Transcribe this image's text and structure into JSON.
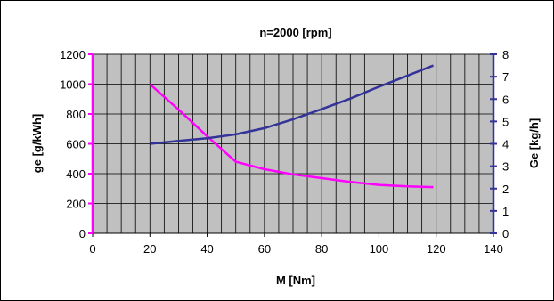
{
  "chart_data": {
    "type": "line",
    "title": "n=2000 [rpm]",
    "xlabel": "M [Nm]",
    "ylabel_left": "ge [g/kWh]",
    "ylabel_right": "Ge [kg/h]",
    "xlim": [
      0,
      140
    ],
    "ylim_left": [
      0,
      1200
    ],
    "ylim_right": [
      0,
      8
    ],
    "x_ticks": [
      "0",
      "20",
      "40",
      "60",
      "80",
      "100",
      "120",
      "140"
    ],
    "y_left_ticks": [
      "0",
      "200",
      "400",
      "600",
      "800",
      "1000",
      "1200"
    ],
    "y_right_ticks": [
      "0",
      "1",
      "2",
      "3",
      "4",
      "5",
      "6",
      "7",
      "8"
    ],
    "grid": true,
    "plot_background": "#c0c0c0",
    "series": [
      {
        "axis": "left",
        "color": "#ff00ff",
        "x": [
          20,
          30,
          40,
          50,
          60,
          70,
          80,
          90,
          100,
          110,
          119
        ],
        "y": [
          1000,
          830,
          650,
          480,
          430,
          395,
          370,
          345,
          325,
          315,
          310
        ]
      },
      {
        "axis": "right",
        "color": "#333399",
        "x": [
          20,
          30,
          40,
          50,
          60,
          70,
          80,
          90,
          100,
          110,
          119
        ],
        "y": [
          4.0,
          4.13,
          4.25,
          4.42,
          4.7,
          5.1,
          5.55,
          6.02,
          6.55,
          7.05,
          7.5
        ]
      }
    ]
  }
}
